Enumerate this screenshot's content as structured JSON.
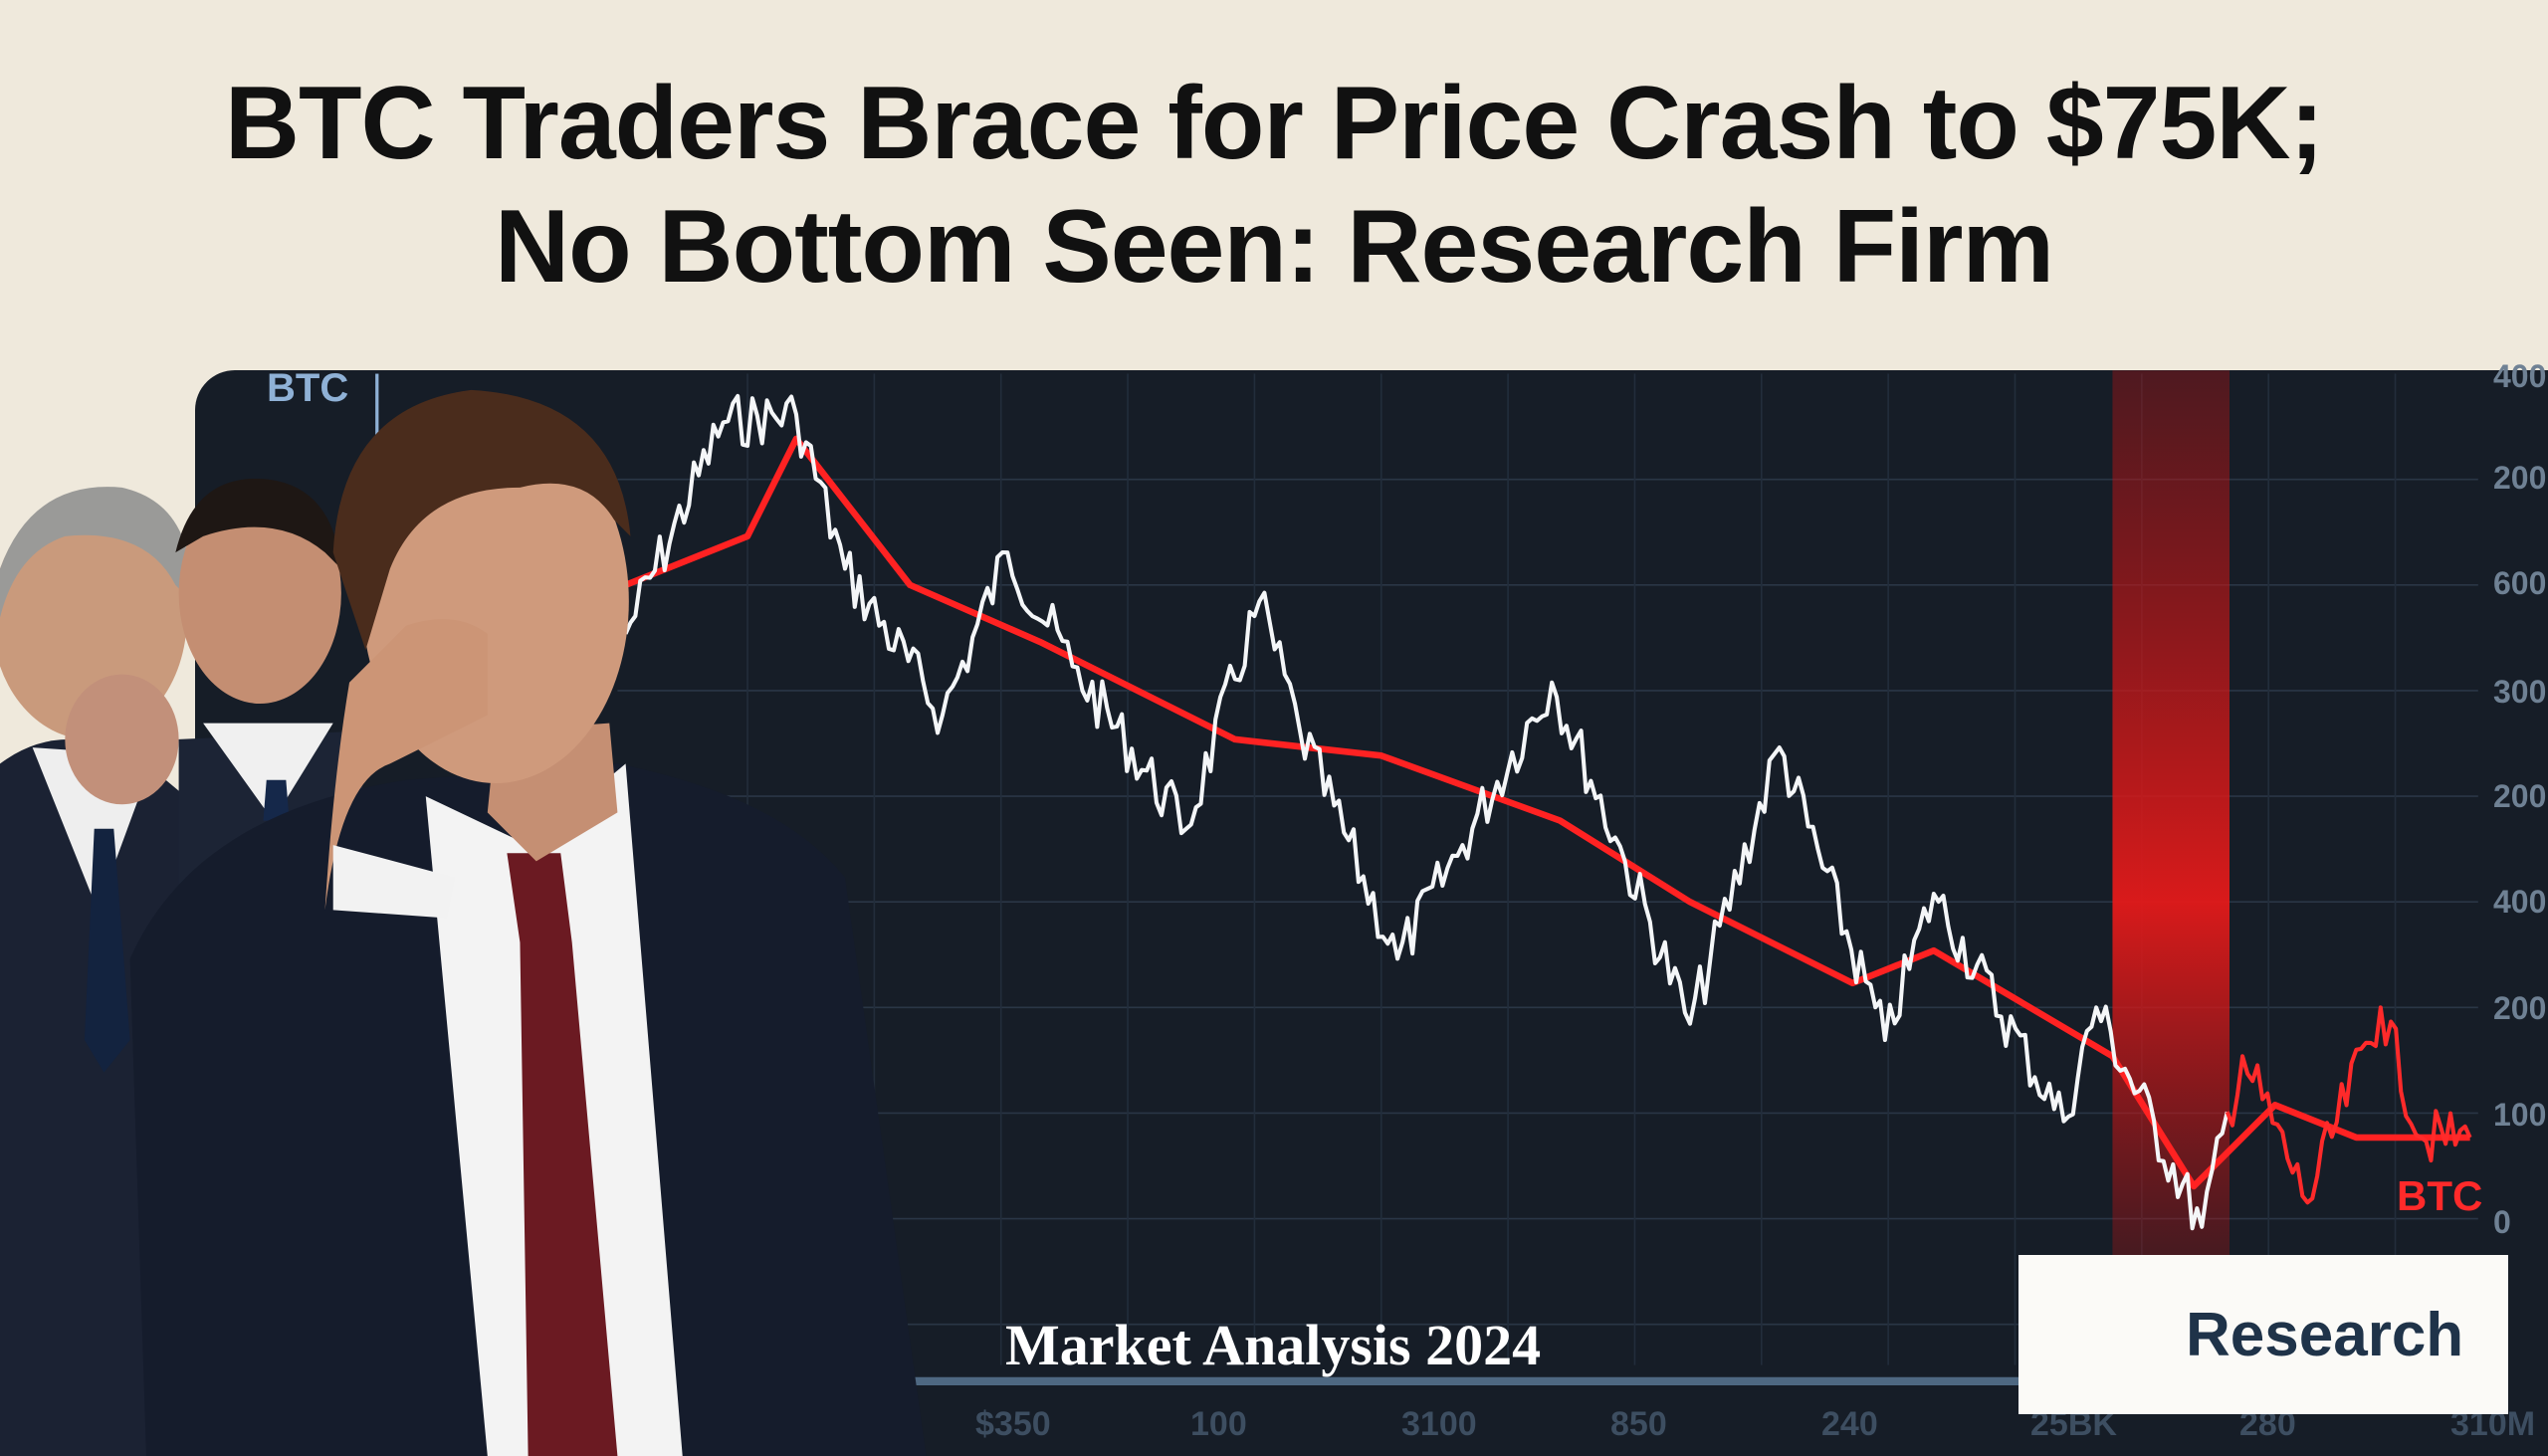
{
  "headline": {
    "line1": "BTC Traders Brace for Price Crash to $75K;",
    "line2": "No Bottom Seen: Research Firm"
  },
  "screen": {
    "ticker_top": "BTC",
    "ticker_label": "BTC",
    "y_axis_labels": [
      "400",
      "200",
      "600",
      "300",
      "200",
      "400",
      "200",
      "100",
      "0"
    ],
    "x_axis_labels": [
      "$350",
      "100",
      "3100",
      "850",
      "240",
      "25BK",
      "280",
      "310M"
    ],
    "caption": "Market Analysis 2024",
    "colors": {
      "background": "#161d27",
      "price_line": "#ffffff",
      "trend_line": "#ff2222",
      "highlight_band": "#e01818"
    }
  },
  "logo": {
    "text": "Research",
    "brand_color": "#f08a12",
    "icon": "play-arrow-logo-icon"
  }
}
